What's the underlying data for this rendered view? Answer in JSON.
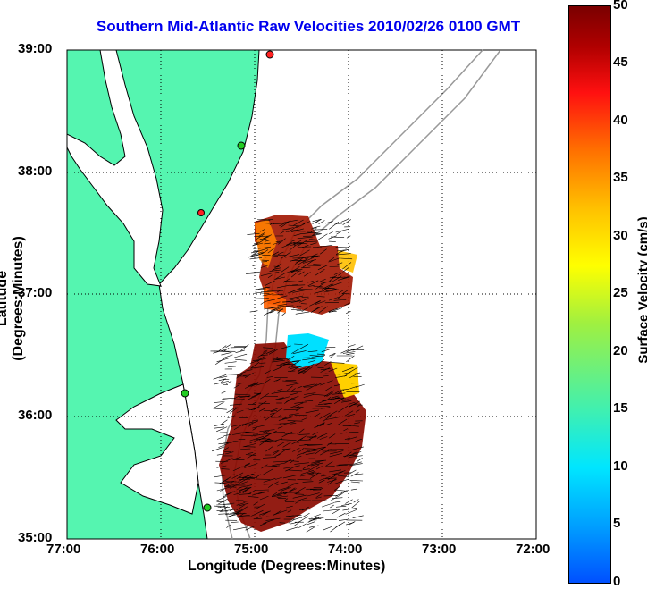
{
  "title": "Southern Mid-Atlantic Raw Velocities 2010/02/26 0100 GMT",
  "map": {
    "xlabel": "Longitude (Degrees:Minutes)",
    "ylabel": "Latitude (Degrees:Minutes)",
    "x_ticks": [
      "77:00",
      "76:00",
      "75:00",
      "74:00",
      "73:00",
      "72:00"
    ],
    "y_ticks": [
      "39:00",
      "38:00",
      "37:00",
      "36:00",
      "35:00"
    ],
    "lon_range": [
      -77,
      -72
    ],
    "lat_range": [
      35,
      39
    ],
    "grid": "dotted",
    "land_color": "#55f5b0",
    "colors": {
      "coast": "#000000",
      "bathymetry": "#999999",
      "site_active": "#22cc22",
      "site_inactive": "#ff2222"
    }
  },
  "colorbar": {
    "label": "Surface Velocity (cm/s)",
    "ticks": [
      "50",
      "45",
      "40",
      "35",
      "30",
      "25",
      "20",
      "15",
      "10",
      "5",
      "0"
    ],
    "range": [
      0,
      50
    ]
  }
}
